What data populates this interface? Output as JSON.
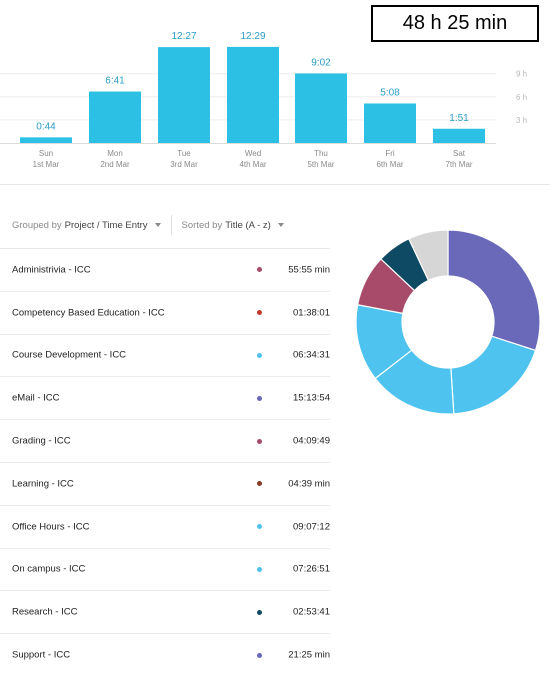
{
  "total": "48 h 25 min",
  "y_ticks": [
    "9 h",
    "6 h",
    "3 h"
  ],
  "chart_data": {
    "type": "bar",
    "categories": [
      "Sun",
      "Mon",
      "Tue",
      "Wed",
      "Thu",
      "Fri",
      "Sat"
    ],
    "dates": [
      "1st Mar",
      "2nd Mar",
      "3rd Mar",
      "4th Mar",
      "5th Mar",
      "6th Mar",
      "7th Mar"
    ],
    "values": [
      0.733,
      6.683,
      12.45,
      12.483,
      9.033,
      5.133,
      1.85
    ],
    "value_labels": [
      "0:44",
      "6:41",
      "12:27",
      "12:29",
      "9:02",
      "5:08",
      "1:51"
    ],
    "ylim": [
      0,
      14
    ],
    "grid": true,
    "bar_color": "#2bc0e4"
  },
  "controls": {
    "group_prefix": "Grouped by",
    "group_value": "Project / Time Entry",
    "sort_prefix": "Sorted by",
    "sort_value": "Title (A - z)"
  },
  "entries": [
    {
      "name": "Administrivia - ICC",
      "duration": "55:55 min",
      "color": "#a84a6a"
    },
    {
      "name": "Competency Based Education - ICC",
      "duration": "01:38:01",
      "color": "#c0392b"
    },
    {
      "name": "Course Development - ICC",
      "duration": "06:34:31",
      "color": "#4ec3f0"
    },
    {
      "name": "eMail - ICC",
      "duration": "15:13:54",
      "color": "#6a68b8"
    },
    {
      "name": "Grading - ICC",
      "duration": "04:09:49",
      "color": "#a84a6a"
    },
    {
      "name": "Learning - ICC",
      "duration": "04:39 min",
      "color": "#8b3a2a"
    },
    {
      "name": "Office Hours - ICC",
      "duration": "09:07:12",
      "color": "#4ec3f0"
    },
    {
      "name": "On campus - ICC",
      "duration": "07:26:51",
      "color": "#4ec3f0"
    },
    {
      "name": "Research - ICC",
      "duration": "02:53:41",
      "color": "#0e4a64"
    },
    {
      "name": "Support - ICC",
      "duration": "21:25 min",
      "color": "#6a68b8"
    }
  ],
  "donut_segments": [
    {
      "value": 0.3,
      "color": "#6a68b8"
    },
    {
      "value": 0.19,
      "color": "#4ec3f0"
    },
    {
      "value": 0.155,
      "color": "#4ec3f0"
    },
    {
      "value": 0.135,
      "color": "#4ec3f0"
    },
    {
      "value": 0.09,
      "color": "#a84a6a"
    },
    {
      "value": 0.06,
      "color": "#0e4a64"
    },
    {
      "value": 0.07,
      "color": "#d6d6d6"
    }
  ]
}
